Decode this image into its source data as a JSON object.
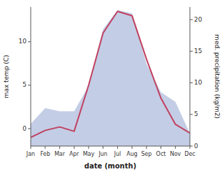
{
  "chart_data": {
    "type": "line",
    "categories": [
      "Jan",
      "Feb",
      "Mar",
      "Apr",
      "May",
      "Jun",
      "Jul",
      "Aug",
      "Sep",
      "Oct",
      "Nov",
      "Dec"
    ],
    "xlabel": "date (month)",
    "ylabel": "max temp (C)",
    "y2label": "med. precipitation (kg/m2)",
    "series": [
      {
        "type": "area",
        "axis": "y2",
        "color": "#b8c4e0",
        "values": [
          3.5,
          6.0,
          5.5,
          5.5,
          9.5,
          18.5,
          21.5,
          21.0,
          13.0,
          8.5,
          7.0,
          2.0
        ]
      },
      {
        "type": "line",
        "color": "#c04060",
        "values": [
          -1.0,
          -0.2,
          0.2,
          -0.3,
          5.0,
          11.0,
          13.5,
          13.0,
          8.0,
          3.5,
          0.5,
          -0.5
        ]
      }
    ],
    "ylim": [
      -2,
      14
    ],
    "yticks": [
      0,
      5,
      10
    ],
    "y2lim": [
      0,
      22
    ],
    "y2ticks": [
      0,
      5,
      10,
      15,
      20
    ],
    "grid": false
  }
}
